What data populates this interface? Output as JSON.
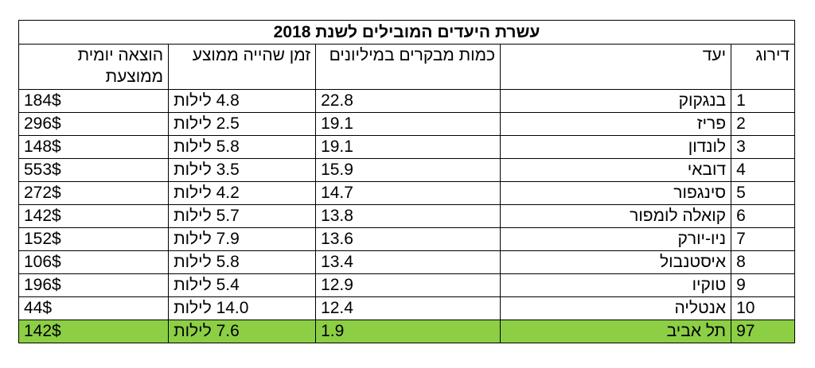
{
  "title": "עשרת היעדים המובילים לשנת 2018",
  "headers": {
    "rank": "דירוג",
    "destination": "יעד",
    "visitors": "כמות מבקרים במיליונים",
    "stay": "זמן שהייה ממוצע",
    "spend": "הוצאה יומית ממוצעת"
  },
  "rows": [
    {
      "rank": "1",
      "destination": "בנגקוק",
      "visitors": "22.8",
      "stay": "4.8 לילות",
      "spend": "184$"
    },
    {
      "rank": "2",
      "destination": "פריז",
      "visitors": "19.1",
      "stay": "2.5 לילות",
      "spend": "296$"
    },
    {
      "rank": "3",
      "destination": "לונדון",
      "visitors": "19.1",
      "stay": "5.8 לילות",
      "spend": "148$"
    },
    {
      "rank": "4",
      "destination": "דובאי",
      "visitors": "15.9",
      "stay": "3.5 לילות",
      "spend": "553$"
    },
    {
      "rank": "5",
      "destination": "סינגפור",
      "visitors": "14.7",
      "stay": "4.2 לילות",
      "spend": "272$"
    },
    {
      "rank": "6",
      "destination": "קואלה לומפור",
      "visitors": "13.8",
      "stay": "5.7 לילות",
      "spend": "142$"
    },
    {
      "rank": "7",
      "destination": "ניו-יורק",
      "visitors": "13.6",
      "stay": "7.9 לילות",
      "spend": "152$"
    },
    {
      "rank": "8",
      "destination": "איסטנבול",
      "visitors": "13.4",
      "stay": "5.8 לילות",
      "spend": "106$"
    },
    {
      "rank": "9",
      "destination": "טוקיו",
      "visitors": "12.9",
      "stay": "5.4 לילות",
      "spend": "196$"
    },
    {
      "rank": "10",
      "destination": "אנטליה",
      "visitors": "12.4",
      "stay": "14.0 לילות",
      "spend": "44$"
    }
  ],
  "highlight_row": {
    "rank": "97",
    "destination": "תל אביב",
    "visitors": "1.9",
    "stay": "7.6 לילות",
    "spend": "142$"
  },
  "colors": {
    "highlight": "#8ccf45",
    "border": "#000000"
  }
}
